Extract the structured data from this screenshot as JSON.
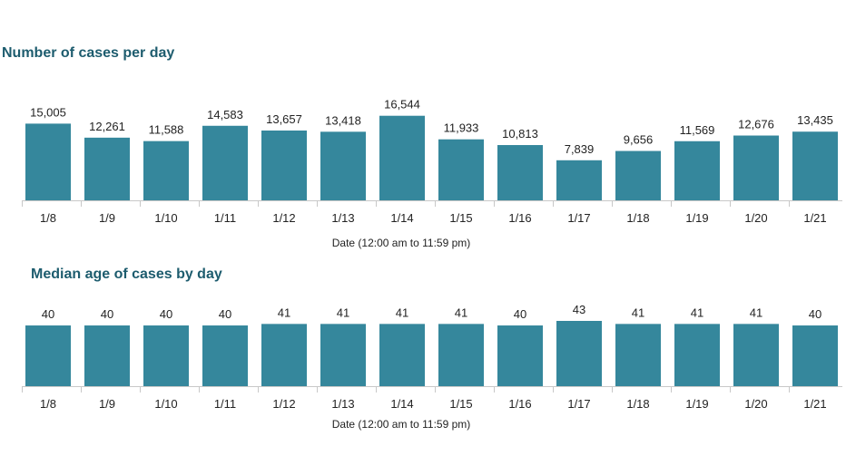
{
  "chart_data": [
    {
      "type": "bar",
      "title": "Number of cases per day",
      "xlabel": "Date (12:00 am to 11:59 pm)",
      "ylabel": "",
      "categories": [
        "1/8",
        "1/9",
        "1/10",
        "1/11",
        "1/12",
        "1/13",
        "1/14",
        "1/15",
        "1/16",
        "1/17",
        "1/18",
        "1/19",
        "1/20",
        "1/21"
      ],
      "values": [
        15005,
        12261,
        11588,
        14583,
        13657,
        13418,
        16544,
        11933,
        10813,
        7839,
        9656,
        11569,
        12676,
        13435
      ],
      "value_labels": [
        "15,005",
        "12,261",
        "11,588",
        "14,583",
        "13,657",
        "13,418",
        "16,544",
        "11,933",
        "10,813",
        "7,839",
        "9,656",
        "11,569",
        "12,676",
        "13,435"
      ],
      "ylim": [
        0,
        18000
      ],
      "grid": false,
      "bar_color": "#35879c"
    },
    {
      "type": "bar",
      "title": "Median age of cases by day",
      "xlabel": "Date (12:00 am to 11:59 pm)",
      "ylabel": "",
      "categories": [
        "1/8",
        "1/9",
        "1/10",
        "1/11",
        "1/12",
        "1/13",
        "1/14",
        "1/15",
        "1/16",
        "1/17",
        "1/18",
        "1/19",
        "1/20",
        "1/21"
      ],
      "values": [
        40,
        40,
        40,
        40,
        41,
        41,
        41,
        41,
        40,
        43,
        41,
        41,
        41,
        40
      ],
      "value_labels": [
        "40",
        "40",
        "40",
        "40",
        "41",
        "41",
        "41",
        "41",
        "40",
        "43",
        "41",
        "41",
        "41",
        "40"
      ],
      "ylim": [
        0,
        43
      ],
      "grid": false,
      "bar_color": "#35879c"
    }
  ],
  "colors": {
    "title": "#1d5c6e",
    "bar": "#35879c",
    "axis": "#c8c8c8"
  }
}
